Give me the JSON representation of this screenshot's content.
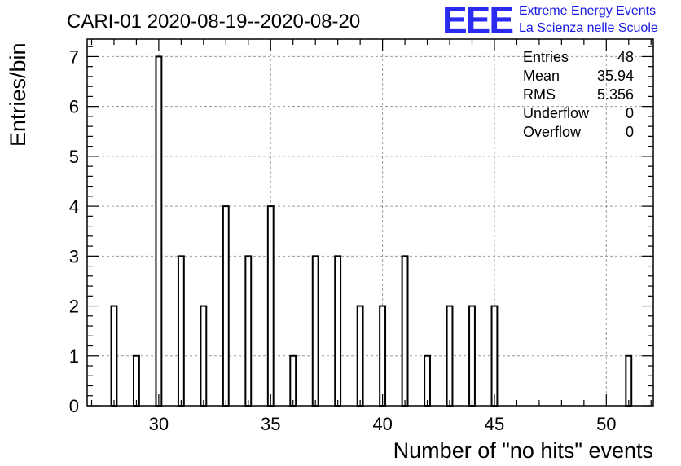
{
  "chart_data": {
    "type": "bar",
    "title": "CARI-01 2020-08-19--2020-08-20",
    "xlabel": "Number of \"no hits\" events",
    "ylabel": "Entries/bin",
    "xlim": [
      26.8,
      52.1
    ],
    "ylim": [
      0,
      7.35
    ],
    "x_ticks": [
      30,
      35,
      40,
      45,
      50
    ],
    "y_ticks": [
      0,
      1,
      2,
      3,
      4,
      5,
      6,
      7
    ],
    "grid": true,
    "bar_width": 0.25,
    "x": [
      28,
      29,
      30,
      31,
      32,
      33,
      34,
      35,
      36,
      37,
      38,
      39,
      40,
      41,
      42,
      43,
      44,
      45,
      51
    ],
    "values": [
      2,
      1,
      7,
      3,
      2,
      4,
      3,
      4,
      1,
      3,
      3,
      2,
      2,
      3,
      1,
      2,
      2,
      2,
      1
    ],
    "stats_box": {
      "position": "top-right",
      "rows": [
        {
          "label": "Entries",
          "value": "48"
        },
        {
          "label": "Mean",
          "value": "35.94"
        },
        {
          "label": "RMS",
          "value": "5.356"
        },
        {
          "label": "Underflow",
          "value": "0"
        },
        {
          "label": "Overflow",
          "value": "0"
        }
      ]
    }
  },
  "logo": {
    "mark": "EEE",
    "line1": "Extreme Energy Events",
    "line2": "La Scienza nelle Scuole",
    "color": "#2a2af0"
  }
}
